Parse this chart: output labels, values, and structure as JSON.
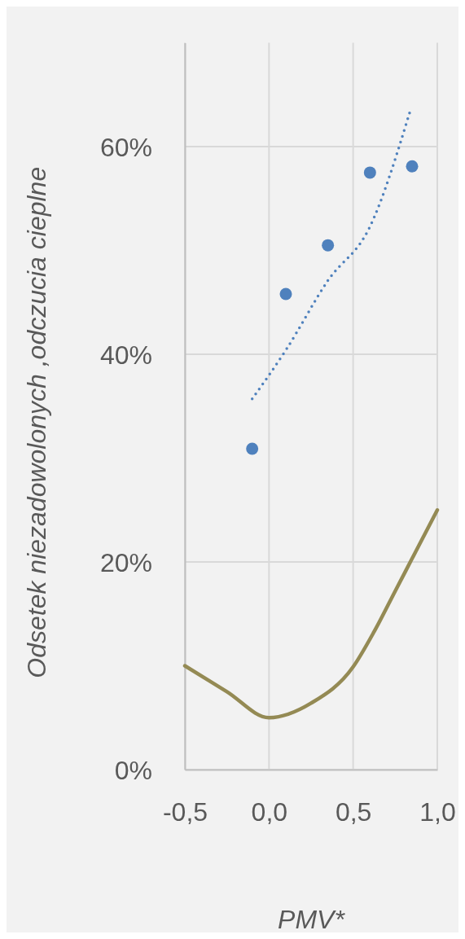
{
  "chart_data": {
    "type": "scatter",
    "xlabel": "PMV*",
    "ylabel": "Odsetek niezadowolonych ,odczucia cieplne",
    "xlim": [
      -0.5,
      1.0
    ],
    "xticks": [
      {
        "value": -0.5,
        "label": "-0,5"
      },
      {
        "value": 0,
        "label": "0,0"
      },
      {
        "value": 0.5,
        "label": "0,5"
      },
      {
        "value": 1.0,
        "label": "1,0"
      }
    ],
    "ylim": [
      0,
      70
    ],
    "yticks": [
      {
        "value": 0,
        "label": "0%"
      },
      {
        "value": 20,
        "label": "20%"
      },
      {
        "value": 40,
        "label": "40%"
      },
      {
        "value": 60,
        "label": "60%"
      }
    ],
    "grid": true,
    "series": [
      {
        "color": "#4f81bd",
        "marker": "circle",
        "x": [
          -0.1,
          0.1,
          0.35,
          0.6,
          0.85
        ],
        "values": [
          30.9,
          45.8,
          50.5,
          57.5,
          58.1
        ]
      },
      {
        "type": "line",
        "color": "#4f81bd",
        "line_style": "dotted",
        "x": [
          -0.1,
          0.1,
          0.35,
          0.6,
          0.84
        ],
        "values": [
          35.7,
          40.4,
          47.1,
          52.3,
          63.5
        ]
      },
      {
        "type": "line",
        "color": "#948a54",
        "line_style": "solid",
        "x": [
          -0.5,
          -0.25,
          0,
          0.25,
          0.5,
          0.625,
          0.75,
          0.875,
          1.0
        ],
        "values": [
          10.0,
          7.5,
          5.0,
          6.4,
          9.9,
          13.3,
          17.2,
          21.1,
          25.0
        ]
      }
    ]
  }
}
